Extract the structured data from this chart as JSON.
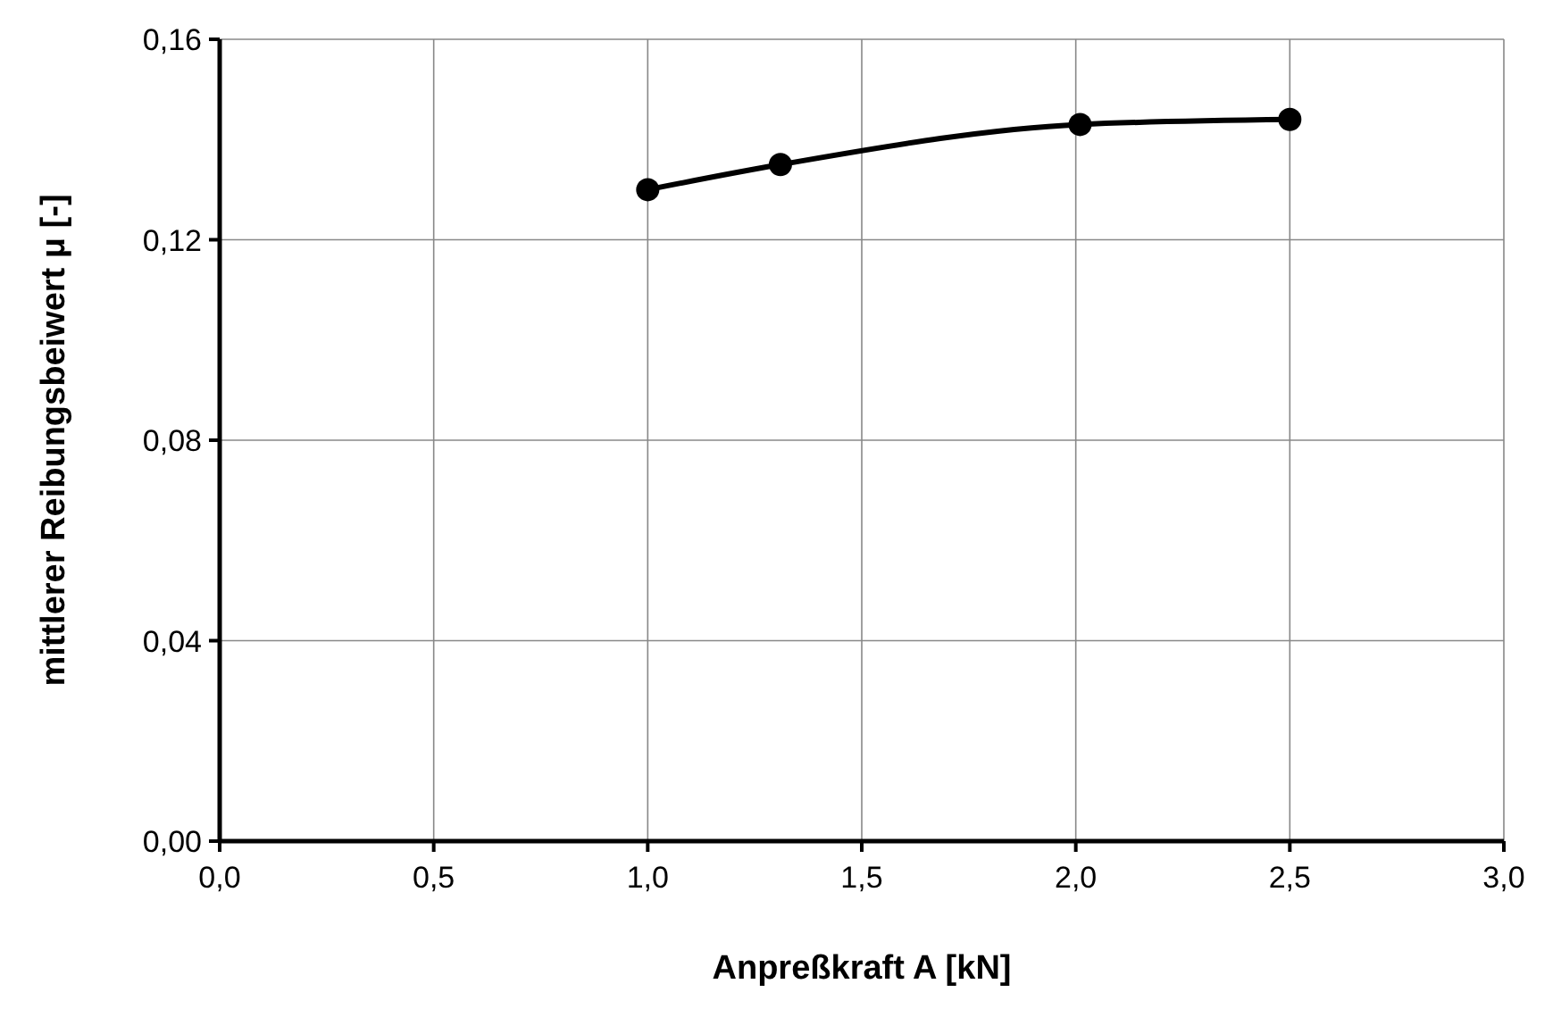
{
  "chart_data": {
    "type": "line",
    "xlabel": "Anpreßkraft A [kN]",
    "ylabel": "mittlerer Reibungsbeiwert μ [-]",
    "x": [
      1.0,
      1.31,
      2.01,
      2.5
    ],
    "series": [
      {
        "color": "#000000",
        "values": [
          0.13,
          0.135,
          0.143,
          0.144
        ]
      }
    ],
    "xlim": [
      0,
      3
    ],
    "xticks": [
      {
        "value": 0,
        "label": "0,0"
      },
      {
        "value": 0.5,
        "label": "0,5"
      },
      {
        "value": 1,
        "label": "1,0"
      },
      {
        "value": 1.5,
        "label": "1,5"
      },
      {
        "value": 2,
        "label": "2,0"
      },
      {
        "value": 2.5,
        "label": "2,5"
      },
      {
        "value": 3,
        "label": "3,0"
      }
    ],
    "ylim": [
      0,
      0.16
    ],
    "yticks": [
      {
        "value": 0,
        "label": "0,00"
      },
      {
        "value": 0.04,
        "label": "0,04"
      },
      {
        "value": 0.08,
        "label": "0,08"
      },
      {
        "value": 0.12,
        "label": "0,12"
      },
      {
        "value": 0.16,
        "label": "0,16"
      }
    ],
    "grid": true,
    "marker": "circle",
    "line_style": "solid"
  }
}
